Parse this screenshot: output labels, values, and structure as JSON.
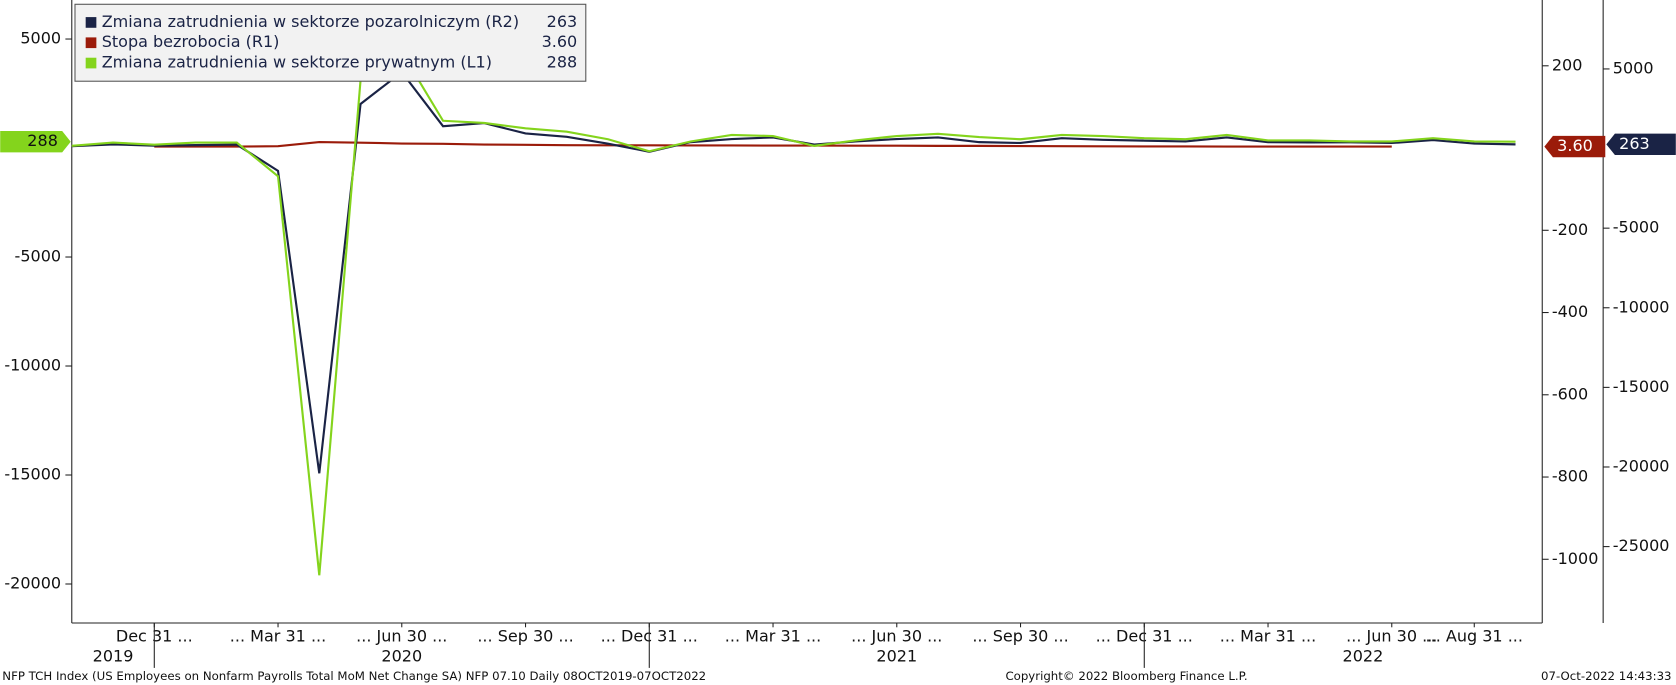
{
  "chart_data": {
    "type": "line",
    "categories": [
      null,
      null,
      "Dec 31 ...",
      null,
      null,
      "... Mar 31 ...",
      null,
      null,
      "... Jun 30 ...",
      null,
      null,
      "... Sep 30 ...",
      null,
      null,
      "... Dec 31 ...",
      null,
      null,
      "... Mar 31 ...",
      null,
      null,
      "... Jun 30 ...",
      null,
      null,
      "... Sep 30 ...",
      null,
      null,
      "... Dec 31 ...",
      null,
      null,
      "... Mar 31 ...",
      null,
      null,
      "... Jun 30 ...",
      null,
      "... Aug 31 ...",
      null
    ],
    "year_labels": [
      "2019",
      "2020",
      "2021",
      "2022"
    ],
    "series": [
      {
        "name": "Zmiana zatrudnienia w sektorze pozarolniczym (R2)",
        "color": "#1a2345",
        "axis": "y3",
        "values": [
          150,
          260,
          180,
          215,
          250,
          -1400,
          -20400,
          2800,
          4800,
          1400,
          1600,
          950,
          740,
          300,
          -200,
          400,
          600,
          700,
          250,
          450,
          600,
          700,
          400,
          350,
          650,
          550,
          500,
          450,
          700,
          400,
          380,
          390,
          350,
          530,
          315,
          263
        ]
      },
      {
        "name": "Stopa bezrobocia (R1)",
        "color": "#9b1b0a",
        "axis": "y2",
        "last_label": "3.60",
        "values": [
          null,
          null,
          3.6,
          3.5,
          3.5,
          4.4,
          14.7,
          13.2,
          11.0,
          10.2,
          8.4,
          7.9,
          6.9,
          6.7,
          6.7,
          6.4,
          6.2,
          6.0,
          6.1,
          5.8,
          5.9,
          5.4,
          5.2,
          4.7,
          4.6,
          4.2,
          3.9,
          4.0,
          3.8,
          3.6,
          3.6,
          3.6,
          3.6,
          null,
          null,
          null
        ]
      },
      {
        "name": "Zmiana zatrudnienia w sektorze prywatnym (L1)",
        "color": "#84d41c",
        "axis": "y",
        "values": [
          100,
          250,
          150,
          250,
          250,
          -1300,
          -19600,
          3100,
          4400,
          1250,
          1150,
          900,
          750,
          400,
          -150,
          300,
          600,
          550,
          100,
          350,
          550,
          650,
          500,
          400,
          600,
          550,
          450,
          400,
          600,
          350,
          350,
          300,
          300,
          450,
          300,
          288
        ]
      }
    ],
    "ylim": [
      -21790,
      6790
    ],
    "yticks": [
      5000,
      -5000,
      -10000,
      -15000,
      -20000
    ],
    "y2lim": [
      -1155,
      360
    ],
    "y2ticks": [
      200,
      -200,
      -400,
      -600,
      -800,
      -1000
    ],
    "y3lim": [
      -29800,
      9330
    ],
    "y3ticks": [
      5000,
      -5000,
      -10000,
      -15000,
      -20000,
      -25000
    ],
    "legend": "upper left",
    "footer_left": "NFP TCH Index (US Employees on Nonfarm Payrolls Total MoM Net Change SA) NFP 07.10  Daily 08OCT2019-07OCT2022",
    "footer_center": "Copyright© 2022 Bloomberg Finance L.P.",
    "footer_right": "07-Oct-2022 14:43:33"
  }
}
